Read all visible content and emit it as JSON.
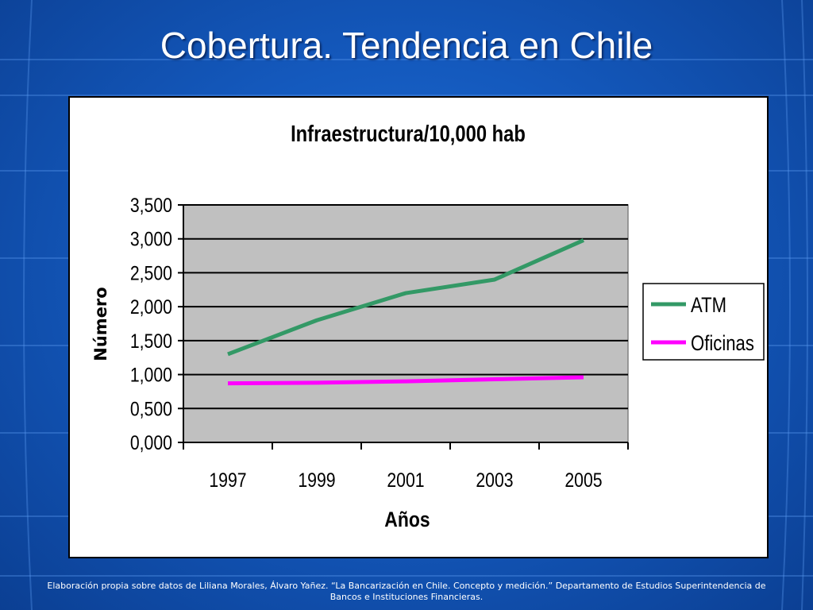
{
  "slide": {
    "title": "Cobertura. Tendencia en Chile",
    "footer": "Elaboración propia sobre datos de Liliana Morales, Álvaro Yañez. “La Bancarización en Chile. Concepto y medición.” Departamento de Estudios Superintendencia de Bancos e Instituciones Financieras."
  },
  "chart_data": {
    "type": "line",
    "title": "Infraestructura/10,000 hab",
    "xlabel": "Años",
    "ylabel": "Número",
    "x": [
      "1997",
      "1999",
      "2001",
      "2003",
      "2005"
    ],
    "ylim": [
      0,
      3.5
    ],
    "yticks": [
      0,
      0.5,
      1.0,
      1.5,
      2.0,
      2.5,
      3.0,
      3.5
    ],
    "ytick_labels": [
      "0,000",
      "0,500",
      "1,000",
      "1,500",
      "2,000",
      "2,500",
      "3,000",
      "3,500"
    ],
    "grid": true,
    "legend_position": "right",
    "series": [
      {
        "name": "ATM",
        "color": "#339966",
        "values": [
          1.3,
          1.8,
          2.2,
          2.4,
          2.98
        ]
      },
      {
        "name": "Oficinas",
        "color": "#ff00ff",
        "values": [
          0.87,
          0.88,
          0.9,
          0.93,
          0.96
        ]
      }
    ],
    "colors": {
      "plot_background": "#c0c0c0",
      "gridline": "#000000"
    }
  }
}
